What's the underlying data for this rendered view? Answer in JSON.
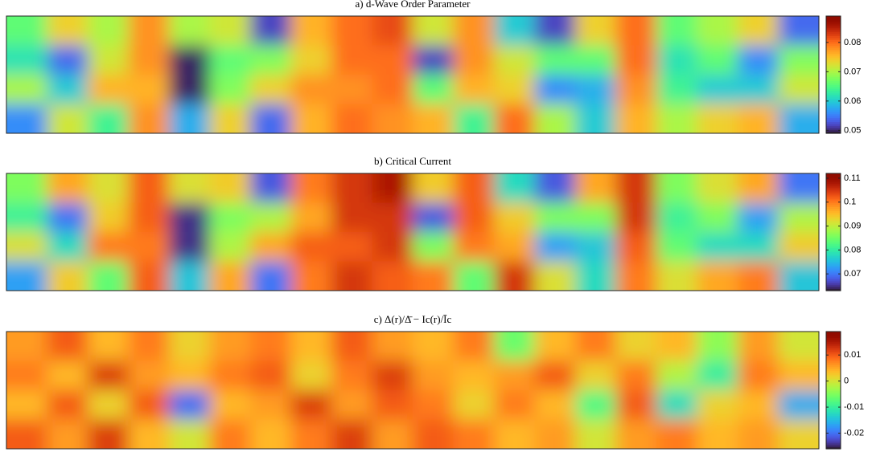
{
  "chart_data": [
    {
      "type": "heatmap",
      "title": "a) d-Wave Order Parameter",
      "colormap": "turbo",
      "zlim": [
        0.049,
        0.089
      ],
      "zticks": [
        0.05,
        0.06,
        0.07,
        0.08
      ],
      "values": [
        [
          0.066,
          0.074,
          0.07,
          0.078,
          0.07,
          0.072,
          0.052,
          0.076,
          0.08,
          0.082,
          0.072,
          0.078,
          0.06,
          0.052,
          0.074,
          0.08,
          0.066,
          0.07,
          0.074,
          0.054
        ],
        [
          0.062,
          0.054,
          0.072,
          0.078,
          0.05,
          0.066,
          0.068,
          0.074,
          0.08,
          0.08,
          0.052,
          0.078,
          0.072,
          0.066,
          0.066,
          0.08,
          0.062,
          0.066,
          0.056,
          0.068
        ],
        [
          0.07,
          0.06,
          0.076,
          0.076,
          0.05,
          0.068,
          0.074,
          0.078,
          0.078,
          0.08,
          0.066,
          0.076,
          0.074,
          0.056,
          0.058,
          0.078,
          0.064,
          0.06,
          0.06,
          0.072
        ],
        [
          0.056,
          0.072,
          0.064,
          0.078,
          0.058,
          0.074,
          0.054,
          0.076,
          0.08,
          0.078,
          0.076,
          0.064,
          0.08,
          0.07,
          0.06,
          0.076,
          0.07,
          0.074,
          0.076,
          0.058
        ]
      ]
    },
    {
      "type": "heatmap",
      "title": "b) Critical Current",
      "colormap": "turbo",
      "zlim": [
        0.063,
        0.112
      ],
      "zticks": [
        0.07,
        0.08,
        0.09,
        0.1,
        0.11
      ],
      "values": [
        [
          0.086,
          0.097,
          0.092,
          0.102,
          0.092,
          0.094,
          0.068,
          0.1,
          0.105,
          0.108,
          0.094,
          0.102,
          0.078,
          0.068,
          0.097,
          0.105,
          0.086,
          0.092,
          0.097,
          0.07
        ],
        [
          0.081,
          0.07,
          0.094,
          0.102,
          0.065,
          0.086,
          0.089,
          0.097,
          0.105,
          0.105,
          0.068,
          0.102,
          0.094,
          0.086,
          0.086,
          0.105,
          0.081,
          0.086,
          0.073,
          0.089
        ],
        [
          0.092,
          0.078,
          0.1,
          0.1,
          0.065,
          0.089,
          0.097,
          0.102,
          0.102,
          0.105,
          0.086,
          0.1,
          0.097,
          0.073,
          0.076,
          0.102,
          0.084,
          0.078,
          0.078,
          0.094
        ],
        [
          0.073,
          0.094,
          0.084,
          0.102,
          0.076,
          0.097,
          0.07,
          0.1,
          0.105,
          0.102,
          0.1,
          0.084,
          0.105,
          0.092,
          0.078,
          0.1,
          0.092,
          0.097,
          0.1,
          0.076
        ]
      ]
    },
    {
      "type": "heatmap",
      "title": "c) Δ(r)/Δ̄ − Ic(r)/Īc",
      "colormap": "turbo",
      "zlim": [
        -0.026,
        0.019
      ],
      "zticks": [
        -0.02,
        -0.01,
        0,
        0.01
      ],
      "values": [
        [
          0.006,
          0.01,
          0.004,
          0.008,
          0.002,
          0.006,
          0.008,
          0.004,
          0.01,
          0.006,
          0.004,
          0.008,
          -0.006,
          0.004,
          0.008,
          0.002,
          0.004,
          -0.004,
          0.006,
          0.0
        ],
        [
          0.008,
          0.004,
          0.012,
          0.006,
          0.004,
          0.008,
          0.01,
          0.002,
          0.008,
          0.012,
          0.006,
          0.004,
          0.006,
          0.01,
          0.002,
          0.008,
          -0.002,
          -0.01,
          0.008,
          0.004
        ],
        [
          0.004,
          0.01,
          0.002,
          0.01,
          -0.02,
          0.004,
          0.006,
          0.012,
          0.006,
          0.01,
          0.008,
          0.002,
          0.008,
          0.004,
          -0.008,
          0.01,
          -0.012,
          0.002,
          0.004,
          -0.016
        ],
        [
          0.01,
          0.006,
          0.012,
          0.004,
          0.0,
          0.008,
          0.004,
          0.008,
          0.012,
          0.006,
          0.01,
          0.008,
          0.004,
          0.006,
          0.0,
          0.006,
          0.008,
          0.004,
          0.006,
          0.002
        ]
      ]
    }
  ]
}
